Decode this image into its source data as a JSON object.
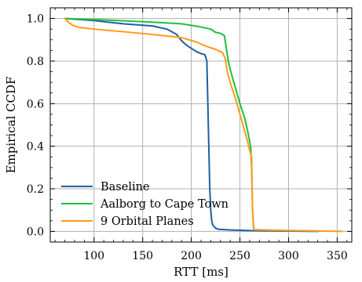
{
  "chart_data": {
    "type": "line",
    "title": "",
    "xlabel": "RTT [ms]",
    "ylabel": "Empirical CCDF",
    "xlim": [
      55,
      365
    ],
    "ylim": [
      -0.05,
      1.05
    ],
    "xticks": [
      100,
      150,
      200,
      250,
      300,
      350
    ],
    "yticks": [
      0.0,
      0.2,
      0.4,
      0.6,
      0.8,
      1.0
    ],
    "xtick_labels": [
      "100",
      "150",
      "200",
      "250",
      "300",
      "350"
    ],
    "ytick_labels": [
      "0.0",
      "0.2",
      "0.4",
      "0.6",
      "0.8",
      "1.0"
    ],
    "grid": true,
    "legend_position": "bottom-left",
    "series": [
      {
        "name": "Baseline",
        "color": "#1f5fa6",
        "x": [
          70,
          100,
          130,
          160,
          175,
          185,
          190,
          195,
          200,
          205,
          210,
          214,
          216,
          217,
          218,
          219,
          220,
          221,
          222,
          225,
          228,
          240,
          260,
          290,
          330
        ],
        "y": [
          1.0,
          0.99,
          0.975,
          0.965,
          0.95,
          0.925,
          0.895,
          0.875,
          0.86,
          0.845,
          0.835,
          0.83,
          0.8,
          0.6,
          0.4,
          0.2,
          0.1,
          0.05,
          0.03,
          0.015,
          0.01,
          0.007,
          0.004,
          0.002,
          0.0
        ]
      },
      {
        "name": "Aalborg to Cape Town",
        "color": "#1fbf3f",
        "x": [
          70,
          100,
          150,
          190,
          210,
          220,
          225,
          230,
          234,
          236,
          238,
          240,
          245,
          250,
          255,
          258,
          261,
          262,
          263,
          264,
          265,
          280,
          300,
          330
        ],
        "y": [
          1.0,
          0.995,
          0.985,
          0.975,
          0.96,
          0.95,
          0.935,
          0.93,
          0.92,
          0.86,
          0.8,
          0.76,
          0.68,
          0.6,
          0.53,
          0.47,
          0.4,
          0.3,
          0.1,
          0.015,
          0.008,
          0.006,
          0.004,
          0.002
        ]
      },
      {
        "name": "9 Orbital Planes",
        "color": "#ff9a1f",
        "x": [
          70,
          73,
          78,
          85,
          100,
          130,
          160,
          190,
          205,
          215,
          225,
          232,
          235,
          237,
          240,
          245,
          250,
          255,
          258,
          260,
          262,
          263,
          264,
          265,
          280,
          300,
          330,
          355
        ],
        "y": [
          1.0,
          0.985,
          0.968,
          0.958,
          0.95,
          0.938,
          0.925,
          0.91,
          0.89,
          0.87,
          0.855,
          0.84,
          0.81,
          0.75,
          0.7,
          0.63,
          0.55,
          0.47,
          0.42,
          0.38,
          0.35,
          0.1,
          0.015,
          0.008,
          0.006,
          0.004,
          0.002,
          0.0
        ]
      }
    ]
  }
}
